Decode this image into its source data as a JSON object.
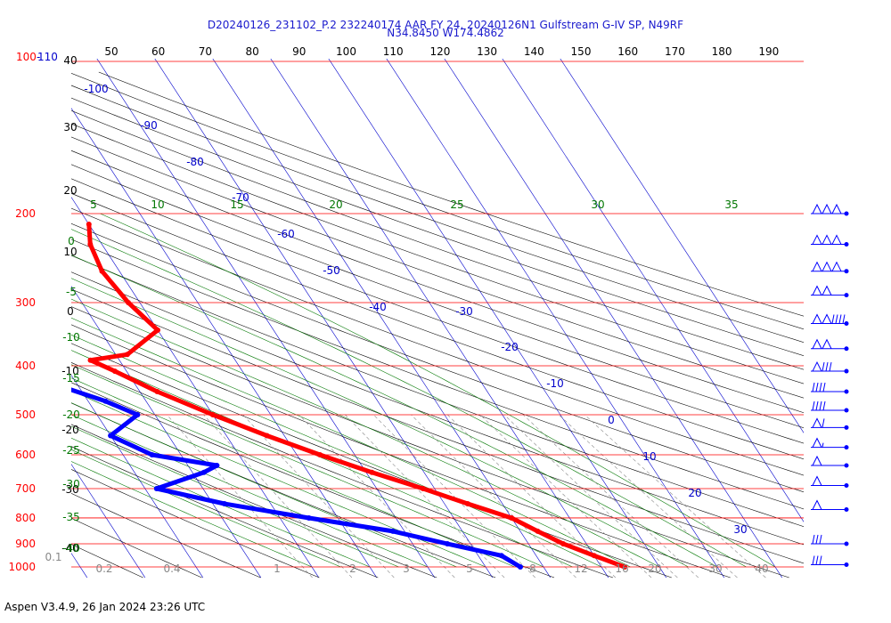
{
  "header": {
    "title_line1": "D20240126_231102_P.2 232240174 AAR FY 24, 20240126N1 Gulfstream G-IV SP, N49RF",
    "title_line2": "N34.8450 W174.4862"
  },
  "footer": {
    "version_text": "Aspen V3.4.9, 26 Jan 2024  23:26 UTC"
  },
  "colors": {
    "pressure_lines": "#ff0000",
    "isotherms": "#0000cc",
    "dry_adiabats": "#000000",
    "moist_adiabats": "#007700",
    "mixing_ratio": "#888888",
    "temperature_trace": "#ff0000",
    "dewpoint_trace": "#0000ff",
    "wind_barbs": "#0000ff"
  },
  "chart_data": {
    "type": "skew-t",
    "pressure_levels": [
      100,
      200,
      300,
      400,
      500,
      600,
      700,
      800,
      900,
      1000
    ],
    "pressure_labels": [
      "100-110",
      "200",
      "300",
      "400",
      "500",
      "600",
      "700",
      "800",
      "900",
      "1000"
    ],
    "top_temp_labels": [
      "50",
      "60",
      "70",
      "80",
      "90",
      "100",
      "110",
      "120",
      "130",
      "140",
      "150",
      "160",
      "170",
      "180",
      "190"
    ],
    "isotherm_labels": [
      "-100",
      "-90",
      "-80",
      "-70",
      "-60",
      "-50",
      "-40",
      "-30",
      "-20",
      "-10",
      "0",
      "10",
      "20",
      "30"
    ],
    "dry_adiabat_left_labels": [
      "40",
      "30",
      "20",
      "10",
      "0",
      "-10",
      "-20",
      "-30",
      "-40"
    ],
    "moist_adiabat_top_labels": [
      "5",
      "10",
      "15",
      "20",
      "25",
      "30",
      "35"
    ],
    "moist_adiabat_left_labels": [
      "0",
      "-5",
      "-10",
      "-15",
      "-20",
      "-25",
      "-30",
      "-35",
      "-40"
    ],
    "mixing_ratio_labels": [
      "0.1",
      "0.2",
      "0.4",
      "1",
      "2",
      "3",
      "5",
      "8",
      "12",
      "16",
      "20",
      "30",
      "40"
    ],
    "temperature": [
      {
        "p": 210,
        "t": -40
      },
      {
        "p": 230,
        "t": -42
      },
      {
        "p": 260,
        "t": -43
      },
      {
        "p": 300,
        "t": -42
      },
      {
        "p": 340,
        "t": -40
      },
      {
        "p": 380,
        "t": -48
      },
      {
        "p": 390,
        "t": -55
      },
      {
        "p": 410,
        "t": -52
      },
      {
        "p": 450,
        "t": -47
      },
      {
        "p": 500,
        "t": -40
      },
      {
        "p": 550,
        "t": -33
      },
      {
        "p": 600,
        "t": -26
      },
      {
        "p": 650,
        "t": -19
      },
      {
        "p": 700,
        "t": -12
      },
      {
        "p": 750,
        "t": -6
      },
      {
        "p": 800,
        "t": 0
      },
      {
        "p": 850,
        "t": 3
      },
      {
        "p": 900,
        "t": 6
      },
      {
        "p": 950,
        "t": 10
      },
      {
        "p": 1000,
        "t": 14
      }
    ],
    "dewpoint": [
      {
        "p": 250,
        "t": -93
      },
      {
        "p": 280,
        "t": -95
      },
      {
        "p": 300,
        "t": -96
      },
      {
        "p": 330,
        "t": -97
      },
      {
        "p": 350,
        "t": -98
      },
      {
        "p": 370,
        "t": -101
      },
      {
        "p": 390,
        "t": -95
      },
      {
        "p": 400,
        "t": -70
      },
      {
        "p": 430,
        "t": -65
      },
      {
        "p": 470,
        "t": -57
      },
      {
        "p": 500,
        "t": -53
      },
      {
        "p": 550,
        "t": -60
      },
      {
        "p": 600,
        "t": -55
      },
      {
        "p": 630,
        "t": -45
      },
      {
        "p": 650,
        "t": -48
      },
      {
        "p": 700,
        "t": -58
      },
      {
        "p": 750,
        "t": -48
      },
      {
        "p": 800,
        "t": -35
      },
      {
        "p": 850,
        "t": -22
      },
      {
        "p": 900,
        "t": -14
      },
      {
        "p": 950,
        "t": -6
      },
      {
        "p": 1000,
        "t": -4
      }
    ],
    "wind_barbs": [
      {
        "p": 200,
        "speed_kt": 150
      },
      {
        "p": 230,
        "speed_kt": 150
      },
      {
        "p": 260,
        "speed_kt": 150
      },
      {
        "p": 290,
        "speed_kt": 100
      },
      {
        "p": 330,
        "speed_kt": 140
      },
      {
        "p": 370,
        "speed_kt": 100
      },
      {
        "p": 410,
        "speed_kt": 80
      },
      {
        "p": 450,
        "speed_kt": 40
      },
      {
        "p": 490,
        "speed_kt": 40
      },
      {
        "p": 530,
        "speed_kt": 60
      },
      {
        "p": 580,
        "speed_kt": 55
      },
      {
        "p": 630,
        "speed_kt": 50
      },
      {
        "p": 690,
        "speed_kt": 50
      },
      {
        "p": 770,
        "speed_kt": 50
      },
      {
        "p": 900,
        "speed_kt": 30
      },
      {
        "p": 990,
        "speed_kt": 30
      }
    ]
  }
}
